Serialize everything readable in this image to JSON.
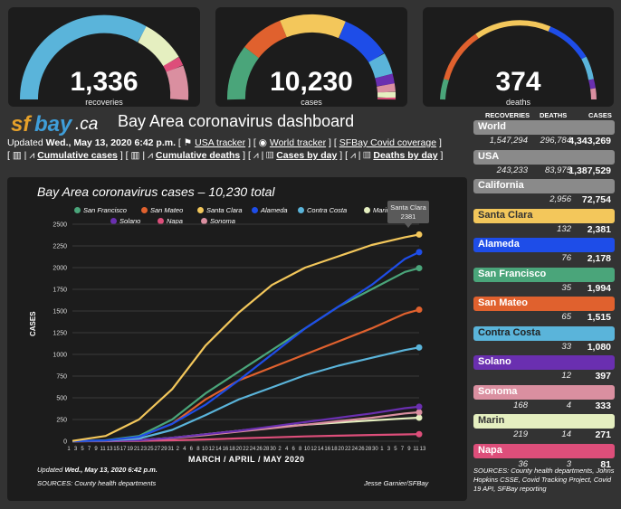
{
  "gauges": [
    {
      "value": "1,336",
      "label": "recoveries"
    },
    {
      "value": "10,230",
      "label": "cases"
    },
    {
      "value": "374",
      "label": "deaths"
    }
  ],
  "logo": {
    "sf": "sf",
    "bay": "bay",
    "ca": ".ca"
  },
  "dashboard_title": "Bay Area coronavirus dashboard",
  "updated": {
    "prefix": "Updated ",
    "date": "Wed., May 13, 2020 6:42 p.m.",
    "sep1": " [ ",
    "link_usa": "USA tracker",
    "sep2": " ] [ ",
    "link_world": "World tracker",
    "sep3": " ] [ ",
    "link_sfbay": "SFBay Covid coverage",
    "sep4": " ]"
  },
  "links": [
    {
      "label": "Cumulative cases"
    },
    {
      "label": "Cumulative deaths"
    },
    {
      "label": "Cases by day"
    },
    {
      "label": "Deaths by day"
    }
  ],
  "chart_data": {
    "type": "line",
    "title": "Bay Area coronavirus cases – 10,230 total",
    "xlabel": "MARCH / APRIL / MAY 2020",
    "ylabel": "CASES",
    "ylim": [
      0,
      2500
    ],
    "yticks": [
      0,
      250,
      500,
      750,
      1000,
      1250,
      1500,
      1750,
      2000,
      2250,
      2500
    ],
    "xticks": [
      "1",
      "3",
      "5",
      "7",
      "9",
      "11",
      "13",
      "15",
      "17",
      "19",
      "21",
      "23",
      "25",
      "27",
      "29",
      "31",
      "2",
      "4",
      "6",
      "8",
      "10",
      "12",
      "14",
      "16",
      "18",
      "20",
      "22",
      "24",
      "26",
      "28",
      "30",
      "2",
      "4",
      "6",
      "8",
      "10",
      "12",
      "14",
      "16",
      "18",
      "20",
      "22",
      "24",
      "26",
      "28",
      "30",
      "1",
      "3",
      "5",
      "7",
      "9",
      "11",
      "13"
    ],
    "legend": [
      {
        "name": "San Francisco",
        "color": "#4aa57a"
      },
      {
        "name": "San Mateo",
        "color": "#e0612e"
      },
      {
        "name": "Santa Clara",
        "color": "#f3c75b"
      },
      {
        "name": "Alameda",
        "color": "#1e4de8"
      },
      {
        "name": "Contra Costa",
        "color": "#5ab4da"
      },
      {
        "name": "Marin",
        "color": "#e5efc0"
      },
      {
        "name": "Solano",
        "color": "#6a2fb0"
      },
      {
        "name": "Napa",
        "color": "#dd4e7a"
      },
      {
        "name": "Sonoma",
        "color": "#da8fa0"
      }
    ],
    "x": [
      0,
      7,
      14,
      21,
      28,
      35,
      42,
      49,
      56,
      63,
      70,
      73
    ],
    "series": [
      {
        "name": "Santa Clara",
        "color": "#f3c75b",
        "values": [
          3,
          60,
          250,
          600,
          1100,
          1480,
          1800,
          2000,
          2130,
          2260,
          2350,
          2381
        ]
      },
      {
        "name": "Alameda",
        "color": "#1e4de8",
        "values": [
          0,
          8,
          50,
          200,
          420,
          700,
          1000,
          1300,
          1550,
          1800,
          2100,
          2178
        ]
      },
      {
        "name": "San Francisco",
        "color": "#4aa57a",
        "values": [
          0,
          10,
          60,
          250,
          550,
          800,
          1050,
          1300,
          1550,
          1750,
          1950,
          1994
        ]
      },
      {
        "name": "San Mateo",
        "color": "#e0612e",
        "values": [
          0,
          5,
          50,
          200,
          480,
          700,
          850,
          1000,
          1150,
          1300,
          1470,
          1515
        ]
      },
      {
        "name": "Contra Costa",
        "color": "#5ab4da",
        "values": [
          0,
          5,
          30,
          130,
          300,
          480,
          620,
          760,
          870,
          960,
          1050,
          1080
        ]
      },
      {
        "name": "Solano",
        "color": "#6a2fb0",
        "values": [
          0,
          2,
          10,
          40,
          80,
          120,
          170,
          220,
          270,
          320,
          380,
          397
        ]
      },
      {
        "name": "Sonoma",
        "color": "#da8fa0",
        "values": [
          0,
          2,
          10,
          35,
          70,
          110,
          150,
          190,
          230,
          270,
          320,
          333
        ]
      },
      {
        "name": "Marin",
        "color": "#e5efc0",
        "values": [
          0,
          2,
          10,
          40,
          80,
          120,
          160,
          190,
          215,
          240,
          262,
          271
        ]
      },
      {
        "name": "Napa",
        "color": "#dd4e7a",
        "values": [
          0,
          0,
          3,
          10,
          20,
          32,
          44,
          55,
          64,
          72,
          78,
          81
        ]
      }
    ],
    "tooltip": {
      "name": "Santa Clara",
      "value": "2381"
    }
  },
  "chart_footer": {
    "updated_prefix": "Updated ",
    "updated_date": "Wed., May 13, 2020 6:42 p.m.",
    "sources": "SOURCES: County health departments",
    "credit": "Jesse Garnier/SFBay"
  },
  "sidebar": {
    "headers": {
      "recoveries": "RECOVERIES",
      "deaths": "DEATHS",
      "cases": "CASES"
    },
    "regions": [
      {
        "name": "World",
        "color": "#8a8a8a",
        "text": "#fff",
        "recoveries": "1,547,294",
        "deaths": "296,784",
        "cases": "4,343,269"
      },
      {
        "name": "USA",
        "color": "#8a8a8a",
        "text": "#fff",
        "recoveries": "243,233",
        "deaths": "83,975",
        "cases": "1,387,529"
      },
      {
        "name": "California",
        "color": "#8a8a8a",
        "text": "#fff",
        "recoveries": "",
        "deaths": "2,956",
        "cases": "72,754"
      },
      {
        "name": "Santa Clara",
        "color": "#f3c75b",
        "text": "#333",
        "recoveries": "",
        "deaths": "132",
        "cases": "2,381"
      },
      {
        "name": "Alameda",
        "color": "#1e4de8",
        "text": "#fff",
        "recoveries": "",
        "deaths": "76",
        "cases": "2,178"
      },
      {
        "name": "San Francisco",
        "color": "#4aa57a",
        "text": "#fff",
        "recoveries": "",
        "deaths": "35",
        "cases": "1,994"
      },
      {
        "name": "San Mateo",
        "color": "#e0612e",
        "text": "#fff",
        "recoveries": "",
        "deaths": "65",
        "cases": "1,515"
      },
      {
        "name": "Contra Costa",
        "color": "#5ab4da",
        "text": "#222",
        "recoveries": "",
        "deaths": "33",
        "cases": "1,080"
      },
      {
        "name": "Solano",
        "color": "#6a2fb0",
        "text": "#fff",
        "recoveries": "",
        "deaths": "12",
        "cases": "397"
      },
      {
        "name": "Sonoma",
        "color": "#da8fa0",
        "text": "#fff",
        "recoveries": "168",
        "deaths": "4",
        "cases": "333"
      },
      {
        "name": "Marin",
        "color": "#e5efc0",
        "text": "#333",
        "recoveries": "219",
        "deaths": "14",
        "cases": "271"
      },
      {
        "name": "Napa",
        "color": "#dd4e7a",
        "text": "#fff",
        "recoveries": "36",
        "deaths": "3",
        "cases": "81"
      }
    ],
    "sources": "SOURCES: County health departments, Johns Hopkins CSSE, Covid Tracking Project, Covid 19 API, SFBay reporting"
  }
}
